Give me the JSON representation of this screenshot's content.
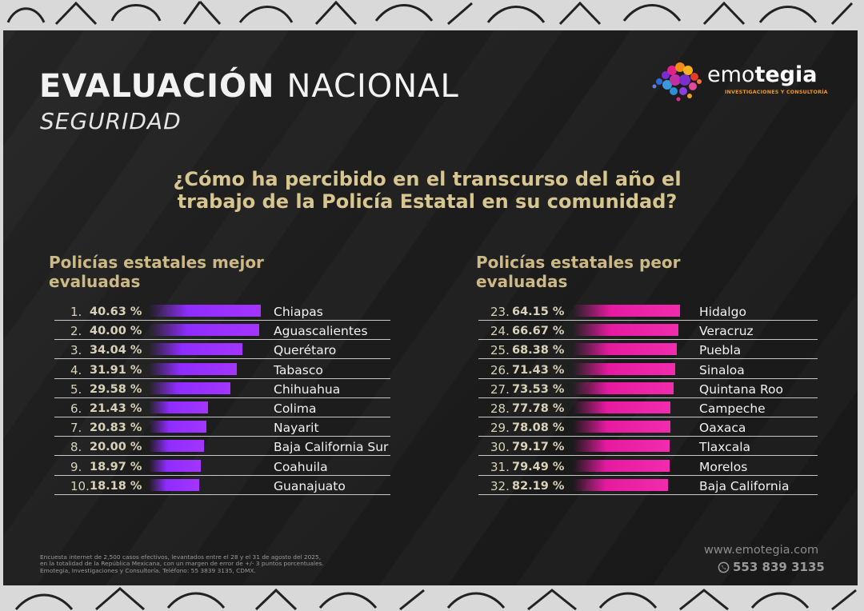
{
  "header": {
    "title_bold": "EVALUACIÓN",
    "title_light": "NACIONAL",
    "subtitle": "SEGURIDAD"
  },
  "logo": {
    "name_part1": "emo",
    "name_part2": "tegia",
    "tagline": "INVESTIGACIONES Y CONSULTORÍA"
  },
  "question": "¿Cómo ha percibido en el transcurso del año el trabajo de la Policía Estatal en su comunidad?",
  "colors": {
    "background": "#1d1d1d",
    "best_bar": "#a335ff",
    "worst_bar": "#f22cae",
    "heading": "#d8c690"
  },
  "chart_data": [
    {
      "type": "bar",
      "orientation": "horizontal",
      "title": "Policías estatales mejor evaluadas",
      "ranks": [
        "1.",
        "2.",
        "3.",
        "4.",
        "5.",
        "6.",
        "7.",
        "8.",
        "9.",
        "10."
      ],
      "categories": [
        "Chiapas",
        "Aguascalientes",
        "Querétaro",
        "Tabasco",
        "Chihuahua",
        "Colima",
        "Nayarit",
        "Baja California Sur",
        "Coahuila",
        "Guanajuato"
      ],
      "values": [
        40.63,
        40.0,
        34.04,
        31.91,
        29.58,
        21.43,
        20.83,
        20.0,
        18.97,
        18.18
      ],
      "labels": [
        "40.63 %",
        "40.00 %",
        "34.04 %",
        "31.91 %",
        "29.58 %",
        "21.43 %",
        "20.83 %",
        "20.00 %",
        "18.97 %",
        "18.18 %"
      ]
    },
    {
      "type": "bar",
      "orientation": "horizontal",
      "title": "Policías estatales peor evaluadas",
      "ranks": [
        "23.",
        "24.",
        "25.",
        "26.",
        "27.",
        "28.",
        "29.",
        "30.",
        "31.",
        "32."
      ],
      "categories": [
        "Hidalgo",
        "Veracruz",
        "Puebla",
        "Sinaloa",
        "Quintana Roo",
        "Campeche",
        "Oaxaca",
        "Tlaxcala",
        "Morelos",
        "Baja California"
      ],
      "values": [
        64.15,
        66.67,
        68.38,
        71.43,
        73.53,
        77.78,
        78.08,
        79.17,
        79.49,
        82.19
      ],
      "labels": [
        "64.15 %",
        "66.67 %",
        "68.38 %",
        "71.43 %",
        "73.53 %",
        "77.78 %",
        "78.08 %",
        "79.17 %",
        "79.49 %",
        "82.19 %"
      ]
    }
  ],
  "footer": {
    "note_line1": "Encuesta internet de 2,500 casos efectivos, levantados entre el 28 y el 31 de agosto del 2025,",
    "note_line2": "en la totalidad de la República Mexicana, con un margen de error de +/- 3 puntos porcentuales.",
    "note_line3": "Emotegia, Investigaciones y Consultoría. Teléfono: 55 3839 3135, CDMX.",
    "website": "www.emotegia.com",
    "phone": "553 839 3135"
  }
}
